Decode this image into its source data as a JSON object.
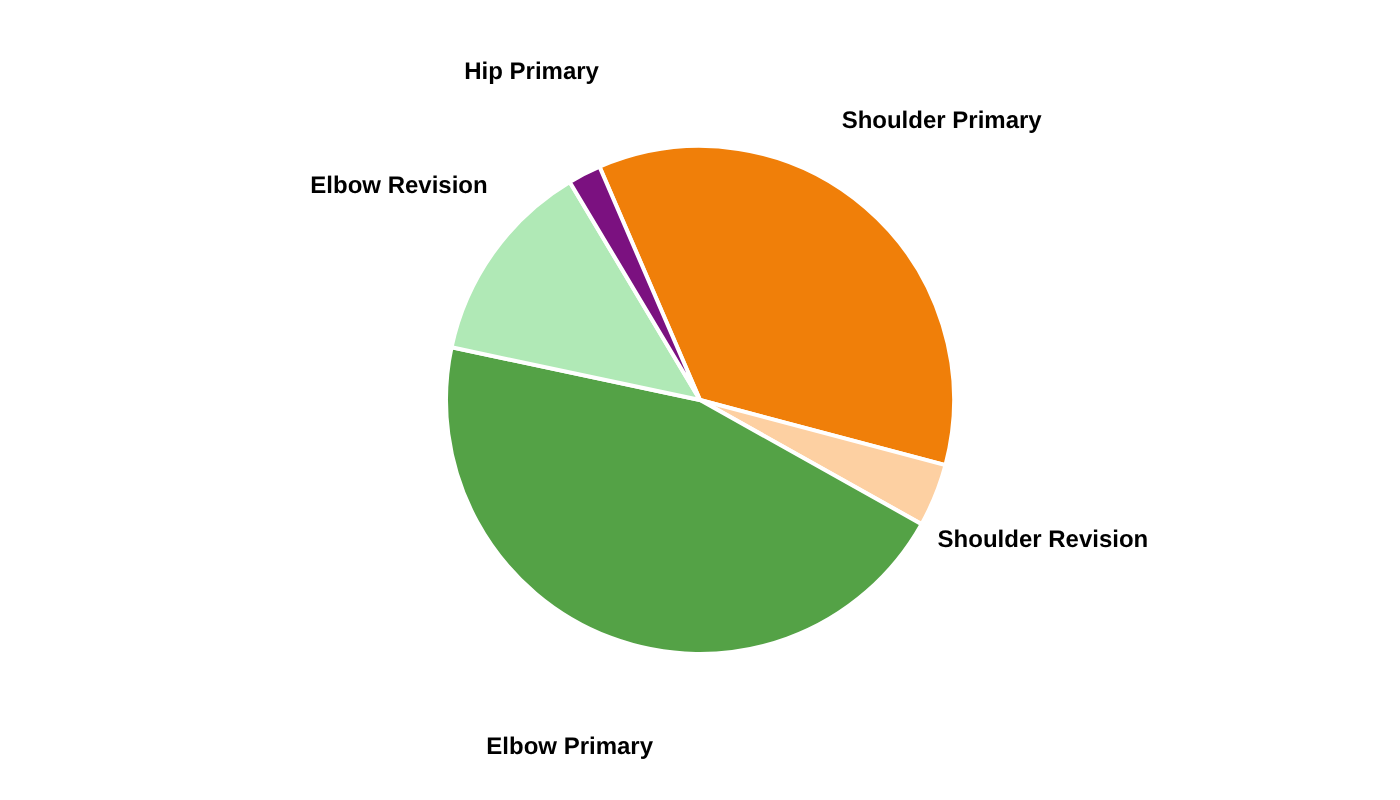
{
  "chart_data": {
    "type": "pie",
    "categories": [
      "Shoulder Primary",
      "Shoulder Revision",
      "Elbow Primary",
      "Elbow Revision",
      "Hip Primary"
    ],
    "values": [
      35.6,
      4.0,
      45.2,
      13.1,
      2.1
    ],
    "colors": [
      "#f07f09",
      "#fdd0a2",
      "#54a246",
      "#b0e9b6",
      "#7b1180"
    ],
    "legend": false
  }
}
